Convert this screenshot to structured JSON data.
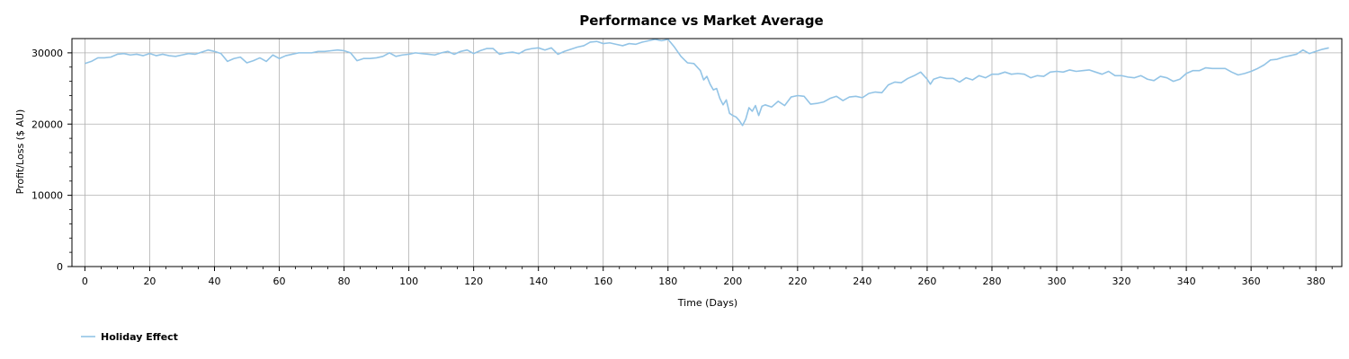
{
  "colors": {
    "series": "#93c4e6",
    "grid": "#b0b0b0",
    "axis": "#000000"
  },
  "chart_data": {
    "type": "line",
    "title": "Performance vs Market Average",
    "xlabel": "Time (Days)",
    "ylabel": "Profit/Loss ($ AU)",
    "xlim": [
      -4,
      388
    ],
    "ylim": [
      0,
      32000
    ],
    "x_ticks": [
      0,
      20,
      40,
      60,
      80,
      100,
      120,
      140,
      160,
      180,
      200,
      220,
      240,
      260,
      280,
      300,
      320,
      340,
      360,
      380
    ],
    "x_tick_labels": [
      "0",
      "20",
      "40",
      "60",
      "80",
      "100",
      "120",
      "140",
      "160",
      "180",
      "200",
      "220",
      "240",
      "260",
      "280",
      "300",
      "320",
      "340",
      "360",
      "380"
    ],
    "y_ticks": [
      0,
      10000,
      20000,
      30000
    ],
    "y_tick_labels": [
      "0",
      "10000",
      "20000",
      "30000"
    ],
    "grid": true,
    "legend_position": "bottom-left",
    "series": [
      {
        "name": "Holiday Effect",
        "points": [
          [
            0,
            28500
          ],
          [
            2,
            28800
          ],
          [
            4,
            29300
          ],
          [
            6,
            29300
          ],
          [
            8,
            29400
          ],
          [
            10,
            29800
          ],
          [
            12,
            29900
          ],
          [
            14,
            29700
          ],
          [
            16,
            29800
          ],
          [
            18,
            29600
          ],
          [
            20,
            29900
          ],
          [
            22,
            29600
          ],
          [
            24,
            29800
          ],
          [
            26,
            29600
          ],
          [
            28,
            29500
          ],
          [
            30,
            29700
          ],
          [
            32,
            29900
          ],
          [
            34,
            29800
          ],
          [
            36,
            30100
          ],
          [
            38,
            30400
          ],
          [
            40,
            30200
          ],
          [
            42,
            29900
          ],
          [
            44,
            28800
          ],
          [
            46,
            29200
          ],
          [
            48,
            29400
          ],
          [
            50,
            28600
          ],
          [
            52,
            28900
          ],
          [
            54,
            29300
          ],
          [
            56,
            28800
          ],
          [
            58,
            29700
          ],
          [
            60,
            29200
          ],
          [
            62,
            29600
          ],
          [
            64,
            29800
          ],
          [
            66,
            30000
          ],
          [
            68,
            30000
          ],
          [
            70,
            30000
          ],
          [
            72,
            30200
          ],
          [
            74,
            30200
          ],
          [
            76,
            30300
          ],
          [
            78,
            30400
          ],
          [
            80,
            30300
          ],
          [
            82,
            30000
          ],
          [
            84,
            28900
          ],
          [
            86,
            29200
          ],
          [
            88,
            29200
          ],
          [
            90,
            29300
          ],
          [
            92,
            29500
          ],
          [
            94,
            30000
          ],
          [
            96,
            29500
          ],
          [
            98,
            29700
          ],
          [
            100,
            29800
          ],
          [
            102,
            30000
          ],
          [
            104,
            29900
          ],
          [
            106,
            29800
          ],
          [
            108,
            29700
          ],
          [
            110,
            30000
          ],
          [
            112,
            30200
          ],
          [
            114,
            29800
          ],
          [
            116,
            30200
          ],
          [
            118,
            30400
          ],
          [
            120,
            29900
          ],
          [
            122,
            30300
          ],
          [
            124,
            30600
          ],
          [
            126,
            30600
          ],
          [
            128,
            29800
          ],
          [
            130,
            30000
          ],
          [
            132,
            30100
          ],
          [
            134,
            29900
          ],
          [
            136,
            30400
          ],
          [
            138,
            30600
          ],
          [
            140,
            30700
          ],
          [
            142,
            30400
          ],
          [
            144,
            30700
          ],
          [
            146,
            29800
          ],
          [
            148,
            30200
          ],
          [
            150,
            30500
          ],
          [
            152,
            30800
          ],
          [
            154,
            31000
          ],
          [
            156,
            31500
          ],
          [
            158,
            31600
          ],
          [
            160,
            31300
          ],
          [
            162,
            31400
          ],
          [
            164,
            31200
          ],
          [
            166,
            31000
          ],
          [
            168,
            31300
          ],
          [
            170,
            31200
          ],
          [
            172,
            31500
          ],
          [
            174,
            31700
          ],
          [
            176,
            31900
          ],
          [
            178,
            31700
          ],
          [
            180,
            31900
          ],
          [
            182,
            30800
          ],
          [
            184,
            29500
          ],
          [
            186,
            28600
          ],
          [
            188,
            28500
          ],
          [
            190,
            27500
          ],
          [
            191,
            26200
          ],
          [
            192,
            26700
          ],
          [
            193,
            25600
          ],
          [
            194,
            24800
          ],
          [
            195,
            25000
          ],
          [
            196,
            23600
          ],
          [
            197,
            22700
          ],
          [
            198,
            23400
          ],
          [
            199,
            21500
          ],
          [
            200,
            21200
          ],
          [
            201,
            21000
          ],
          [
            202,
            20500
          ],
          [
            203,
            19800
          ],
          [
            204,
            20700
          ],
          [
            205,
            22300
          ],
          [
            206,
            21800
          ],
          [
            207,
            22600
          ],
          [
            208,
            21200
          ],
          [
            209,
            22500
          ],
          [
            210,
            22700
          ],
          [
            212,
            22400
          ],
          [
            214,
            23200
          ],
          [
            216,
            22600
          ],
          [
            218,
            23800
          ],
          [
            220,
            24000
          ],
          [
            222,
            23900
          ],
          [
            224,
            22800
          ],
          [
            226,
            22900
          ],
          [
            228,
            23100
          ],
          [
            230,
            23600
          ],
          [
            232,
            23900
          ],
          [
            234,
            23300
          ],
          [
            236,
            23800
          ],
          [
            238,
            23900
          ],
          [
            240,
            23700
          ],
          [
            242,
            24300
          ],
          [
            244,
            24500
          ],
          [
            246,
            24400
          ],
          [
            248,
            25500
          ],
          [
            250,
            25900
          ],
          [
            252,
            25800
          ],
          [
            254,
            26400
          ],
          [
            256,
            26800
          ],
          [
            258,
            27300
          ],
          [
            260,
            26300
          ],
          [
            261,
            25600
          ],
          [
            262,
            26300
          ],
          [
            264,
            26600
          ],
          [
            266,
            26400
          ],
          [
            268,
            26400
          ],
          [
            270,
            25900
          ],
          [
            272,
            26500
          ],
          [
            274,
            26200
          ],
          [
            276,
            26800
          ],
          [
            278,
            26500
          ],
          [
            280,
            27000
          ],
          [
            282,
            27000
          ],
          [
            284,
            27300
          ],
          [
            286,
            27000
          ],
          [
            288,
            27100
          ],
          [
            290,
            27000
          ],
          [
            292,
            26500
          ],
          [
            294,
            26800
          ],
          [
            296,
            26700
          ],
          [
            298,
            27300
          ],
          [
            300,
            27400
          ],
          [
            302,
            27300
          ],
          [
            304,
            27600
          ],
          [
            306,
            27400
          ],
          [
            308,
            27500
          ],
          [
            310,
            27600
          ],
          [
            312,
            27300
          ],
          [
            314,
            27000
          ],
          [
            316,
            27400
          ],
          [
            318,
            26800
          ],
          [
            320,
            26800
          ],
          [
            322,
            26600
          ],
          [
            324,
            26500
          ],
          [
            326,
            26800
          ],
          [
            328,
            26300
          ],
          [
            330,
            26100
          ],
          [
            332,
            26700
          ],
          [
            334,
            26500
          ],
          [
            336,
            26000
          ],
          [
            338,
            26300
          ],
          [
            340,
            27100
          ],
          [
            342,
            27500
          ],
          [
            344,
            27500
          ],
          [
            346,
            27900
          ],
          [
            348,
            27800
          ],
          [
            350,
            27800
          ],
          [
            352,
            27800
          ],
          [
            354,
            27300
          ],
          [
            356,
            26900
          ],
          [
            358,
            27100
          ],
          [
            360,
            27400
          ],
          [
            362,
            27800
          ],
          [
            364,
            28300
          ],
          [
            366,
            29000
          ],
          [
            368,
            29100
          ],
          [
            370,
            29400
          ],
          [
            372,
            29600
          ],
          [
            374,
            29800
          ],
          [
            376,
            30400
          ],
          [
            378,
            29900
          ],
          [
            380,
            30200
          ],
          [
            382,
            30500
          ],
          [
            384,
            30700
          ]
        ]
      }
    ]
  }
}
